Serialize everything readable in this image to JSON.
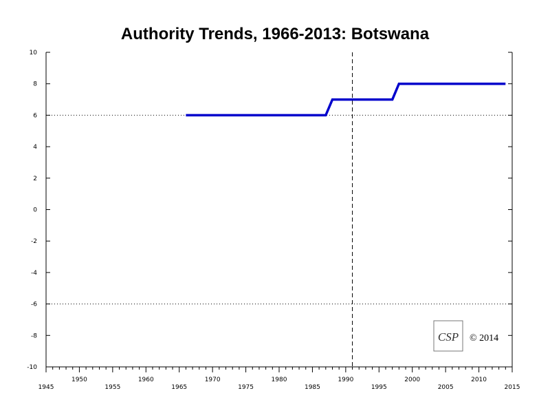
{
  "chart_data": {
    "type": "line",
    "title": "Authority Trends, 1966-2013: Botswana",
    "xlabel": "",
    "ylabel": "",
    "xlim": [
      1945,
      2015
    ],
    "ylim": [
      -10,
      10
    ],
    "x_ticks_lower": [
      "1945",
      "1955",
      "1965",
      "1975",
      "1985",
      "1995",
      "2005",
      "2015"
    ],
    "x_ticks_upper": [
      "1950",
      "1960",
      "1970",
      "1980",
      "1990",
      "2000",
      "2010"
    ],
    "y_ticks": [
      "10",
      "8",
      "6",
      "4",
      "2",
      "0",
      "-2",
      "-4",
      "-6",
      "-8",
      "-10"
    ],
    "reference_lines": {
      "dotted_y": [
        6,
        -6
      ],
      "dashed_x": [
        1991
      ]
    },
    "series": [
      {
        "color": "#0000cc",
        "x": [
          1966,
          1987,
          1988,
          1997,
          1998,
          2014
        ],
        "y": [
          6,
          6,
          7,
          7,
          8,
          8
        ]
      }
    ],
    "grid": false,
    "legend": "none"
  },
  "logo": {
    "text": "CSP"
  },
  "copyright": "© 2014"
}
